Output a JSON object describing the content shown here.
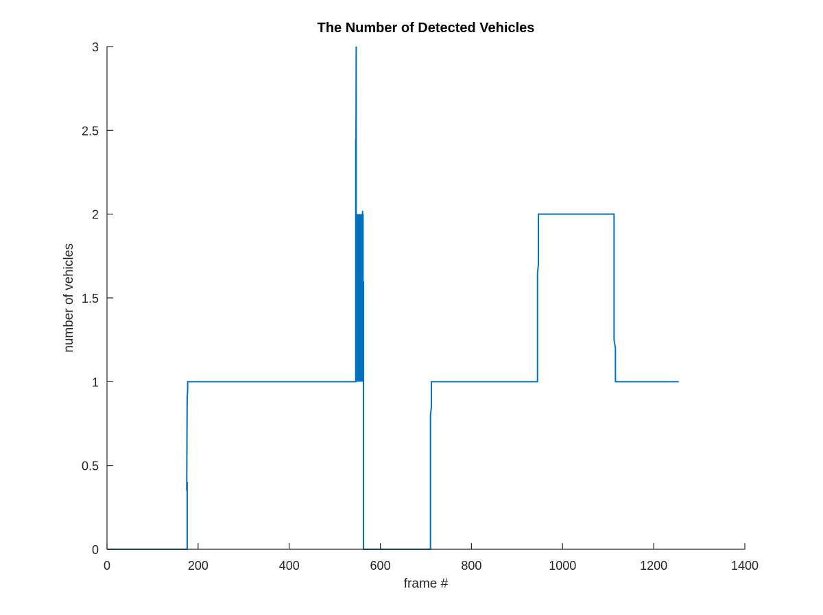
{
  "chart_data": {
    "type": "line",
    "title": "The Number of Detected Vehicles",
    "xlabel": "frame #",
    "ylabel": "number of vehicles",
    "xlim": [
      0,
      1400
    ],
    "ylim": [
      0,
      3
    ],
    "xticks": [
      0,
      200,
      400,
      600,
      800,
      1000,
      1200,
      1400
    ],
    "yticks": [
      0,
      0.5,
      1,
      1.5,
      2,
      2.5,
      3
    ],
    "xtick_labels": [
      "0",
      "200",
      "400",
      "600",
      "800",
      "1000",
      "1200",
      "1400"
    ],
    "ytick_labels": [
      "0",
      "0.5",
      "1",
      "1.5",
      "2",
      "2.5",
      "3"
    ],
    "grid": false,
    "legend": "none",
    "line_color": "#0072BD",
    "series": [
      {
        "x": [
          0,
          176,
          176,
          175,
          176,
          177,
          177,
          546,
          546,
          546,
          546,
          547,
          547,
          548,
          548,
          549,
          549,
          550,
          550,
          551,
          551,
          552,
          552,
          553,
          553,
          554,
          554,
          555,
          555,
          556,
          556,
          557,
          557,
          558,
          558,
          559,
          559,
          560,
          560,
          561,
          561,
          562,
          562,
          563,
          563,
          564,
          564,
          710,
          710,
          712,
          712,
          945,
          945,
          947,
          947,
          1113,
          1113,
          1116,
          1116,
          1255
        ],
        "y": [
          0,
          0,
          0.4,
          0.35,
          0.9,
          0.95,
          1,
          1,
          1.5,
          2.45,
          1.8,
          3,
          1,
          2,
          1,
          2,
          1,
          2,
          1,
          2,
          1,
          2,
          1.05,
          2,
          1,
          1.3,
          1,
          2,
          1,
          2,
          1.05,
          1.3,
          1,
          2,
          1,
          2,
          1,
          2,
          1,
          2.02,
          1,
          2,
          1,
          1.6,
          0,
          0,
          0,
          0,
          0.8,
          0.85,
          1,
          1,
          1.65,
          1.7,
          2,
          2,
          1.25,
          1.2,
          1,
          1
        ]
      }
    ]
  }
}
